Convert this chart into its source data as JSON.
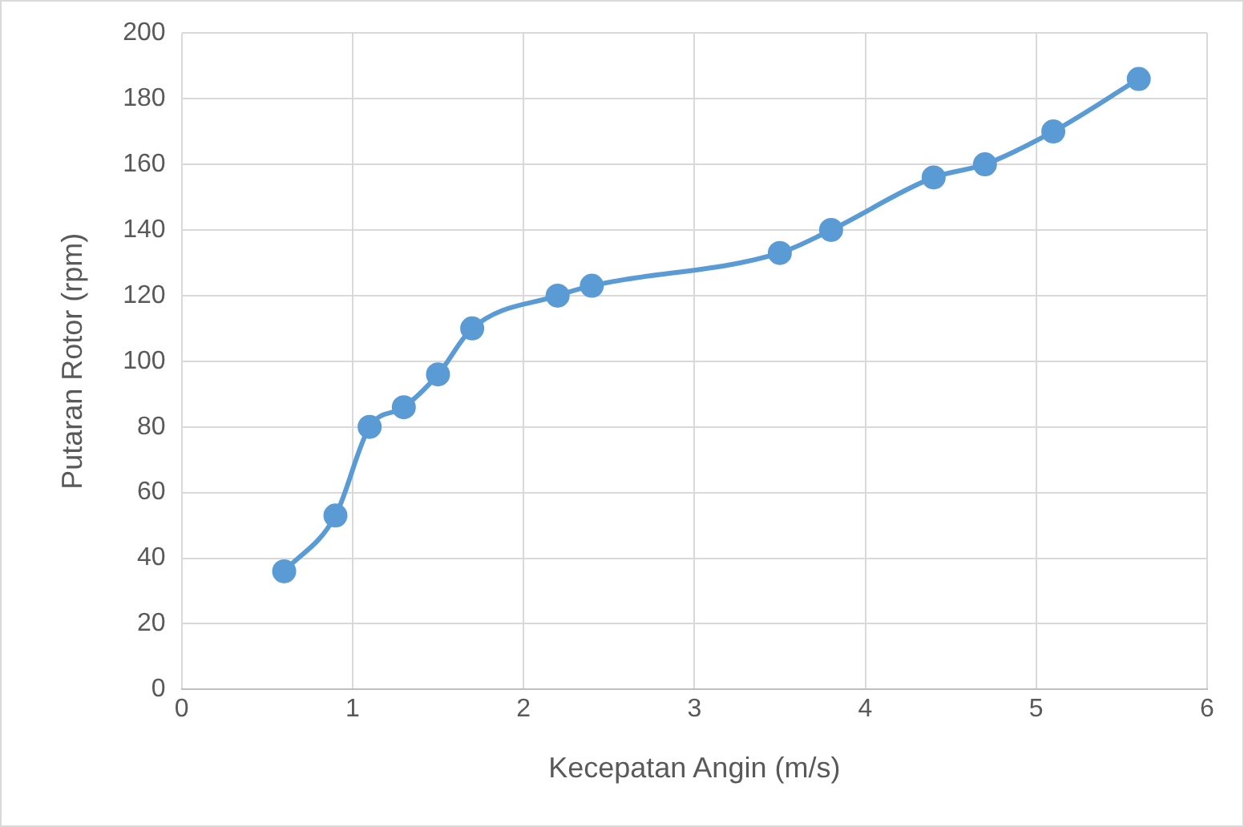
{
  "chart_data": {
    "type": "line",
    "xlabel": "Kecepatan Angin (m/s)",
    "ylabel": "Putaran Rotor (rpm)",
    "x": [
      0.6,
      0.9,
      1.1,
      1.3,
      1.5,
      1.7,
      2.2,
      2.4,
      3.5,
      3.8,
      4.4,
      4.7,
      5.1,
      5.6
    ],
    "series": [
      {
        "color": "#5b9bd5",
        "values": [
          36,
          53,
          80,
          86,
          96,
          110,
          120,
          123,
          133,
          140,
          156,
          160,
          170,
          186
        ]
      }
    ],
    "xlim": [
      0,
      6
    ],
    "xticks": [
      0,
      1,
      2,
      3,
      4,
      5,
      6
    ],
    "ylim": [
      0,
      200
    ],
    "yticks": [
      0,
      20,
      40,
      60,
      80,
      100,
      120,
      140,
      160,
      180,
      200
    ],
    "grid": true,
    "legend": false,
    "marker": "circle",
    "line_style": "solid"
  }
}
